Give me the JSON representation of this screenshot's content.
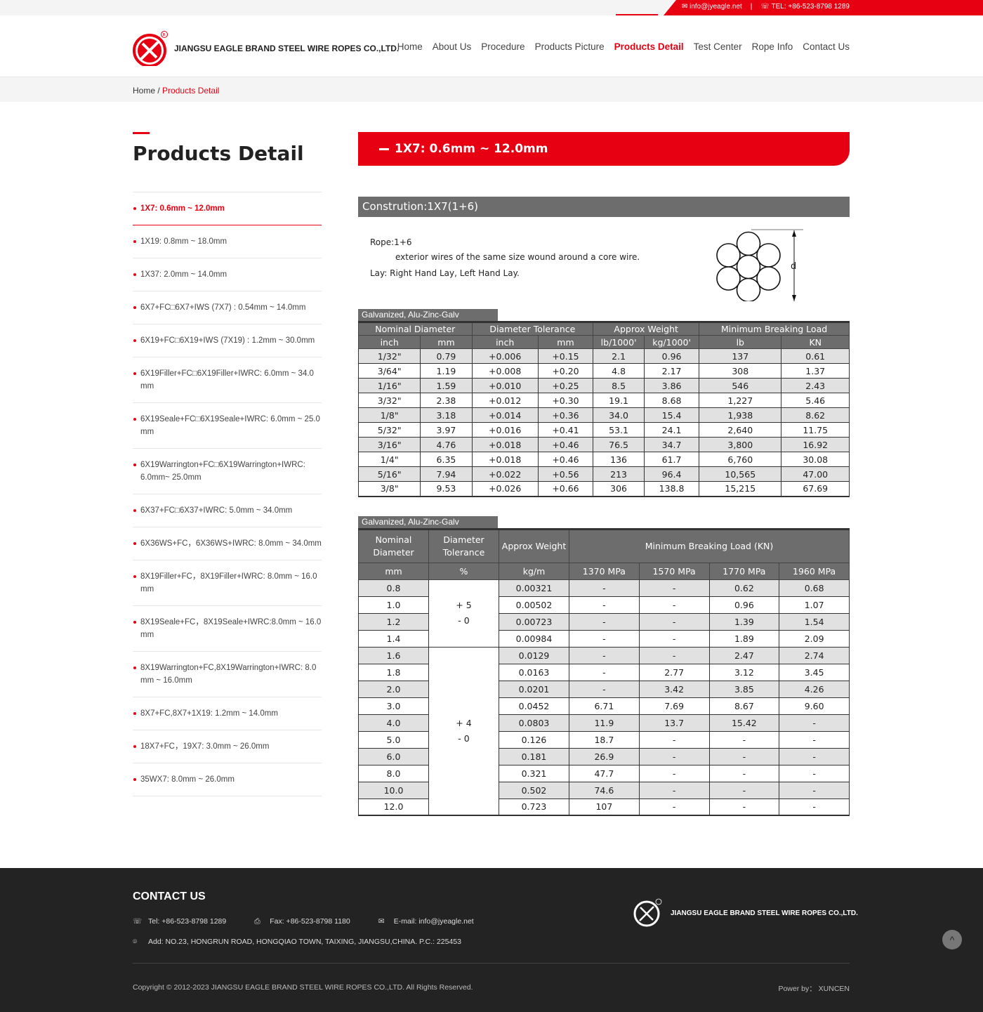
{
  "topbar": {
    "email": "info@jyeagle.net",
    "divider": "|",
    "tel": "TEL: +86-523-8798 1289"
  },
  "header": {
    "brand": "JIANGSU EAGLE BRAND STEEL WIRE ROPES CO.,LTD.",
    "nav": [
      "Home",
      "About Us",
      "Procedure",
      "Products Picture",
      "Products Detail",
      "Test Center",
      "Rope Info",
      "Contact Us"
    ],
    "active_nav": 4
  },
  "breadcrumb": {
    "home": "Home",
    "sep": " / ",
    "current": "Products Detail"
  },
  "sidebar": {
    "title": "Products Detail",
    "items": [
      "1X7: 0.6mm ~ 12.0mm",
      "1X19: 0.8mm ~ 18.0mm",
      "1X37: 2.0mm ~ 14.0mm",
      "6X7+FC□6X7+IWS (7X7) : 0.54mm ~ 14.0mm",
      "6X19+FC□6X19+IWS (7X19) : 1.2mm ~ 30.0mm",
      "6X19Filler+FC□6X19Filler+IWRC: 6.0mm ~ 34.0 mm",
      "6X19Seale+FC□6X19Seale+IWRC: 6.0mm ~ 25.0 mm",
      "6X19Warrington+FC□6X19Warrington+IWRC: 6.0mm~ 25.0mm",
      "6X37+FC□6X37+IWRC: 5.0mm ~ 34.0mm",
      "6X36WS+FC，6X36WS+IWRC: 8.0mm ~ 34.0mm",
      "8X19Filler+FC，8X19Filler+IWRC: 8.0mm ~ 16.0 mm",
      "8X19Seale+FC，8X19Seale+IWRC:8.0mm ~ 16.0 mm",
      "8X19Warrington+FC,8X19Warrington+IWRC: 8.0 mm ~ 16.0mm",
      "8X7+FC,8X7+1X19: 1.2mm ~ 14.0mm",
      "18X7+FC，19X7: 3.0mm ~ 26.0mm",
      "35WX7: 8.0mm ~ 26.0mm"
    ],
    "active": 0
  },
  "main": {
    "title": "1X7: 0.6mm ~ 12.0mm",
    "construction": "Constrution:1X7(1+6)",
    "rope": "Rope:1+6",
    "rope_desc": "exterior wires of the same size wound around a core wire.",
    "lay": "Lay: Right Hand Lay, Left Hand Lay.",
    "diagram_label": "d"
  },
  "table1": {
    "tag": "Galvanized, Alu-Zinc-Galv",
    "groups": [
      "Nominal  Diameter",
      "Diameter  Tolerance",
      "Approx  Weight",
      "Minimum  Breaking  Load"
    ],
    "units": [
      "inch",
      "mm",
      "inch",
      "mm",
      "lb/1000'",
      "kg/1000'",
      "lb",
      "KN"
    ],
    "rows": [
      [
        "1/32\"",
        "0.79",
        "+0.006",
        "+0.15",
        "2.1",
        "0.96",
        "137",
        "0.61"
      ],
      [
        "3/64\"",
        "1.19",
        "+0.008",
        "+0.20",
        "4.8",
        "2.17",
        "308",
        "1.37"
      ],
      [
        "1/16\"",
        "1.59",
        "+0.010",
        "+0.25",
        "8.5",
        "3.86",
        "546",
        "2.43"
      ],
      [
        "3/32\"",
        "2.38",
        "+0.012",
        "+0.30",
        "19.1",
        "8.68",
        "1,227",
        "5.46"
      ],
      [
        "1/8\"",
        "3.18",
        "+0.014",
        "+0.36",
        "34.0",
        "15.4",
        "1,938",
        "8.62"
      ],
      [
        "5/32\"",
        "3.97",
        "+0.016",
        "+0.41",
        "53.1",
        "24.1",
        "2,640",
        "11.75"
      ],
      [
        "3/16\"",
        "4.76",
        "+0.018",
        "+0.46",
        "76.5",
        "34.7",
        "3,800",
        "16.92"
      ],
      [
        "1/4\"",
        "6.35",
        "+0.018",
        "+0.46",
        "136",
        "61.7",
        "6,760",
        "30.08"
      ],
      [
        "5/16\"",
        "7.94",
        "+0.022",
        "+0.56",
        "213",
        "96.4",
        "10,565",
        "47.00"
      ],
      [
        "3/8\"",
        "9.53",
        "+0.026",
        "+0.66",
        "306",
        "138.8",
        "15,215",
        "67.69"
      ]
    ]
  },
  "table2": {
    "tag": "Galvanized, Alu-Zinc-Galv",
    "head": [
      "Nominal Diameter",
      "Diameter Tolerance",
      "Approx Weight",
      "Minimum  Breaking  Load  (KN)"
    ],
    "units": [
      "mm",
      "%",
      "kg/m",
      "1370  MPa",
      "1570  MPa",
      "1770  MPa",
      "1960  MPa"
    ],
    "tolerance_groups": [
      {
        "rows": 4,
        "plus": "+ 5",
        "minus": "- 0"
      },
      {
        "rows": 10,
        "plus": "+ 4",
        "minus": "-  0"
      }
    ],
    "rows": [
      [
        "0.8",
        "0.00321",
        "-",
        "-",
        "0.62",
        "0.68"
      ],
      [
        "1.0",
        "0.00502",
        "-",
        "-",
        "0.96",
        "1.07"
      ],
      [
        "1.2",
        "0.00723",
        "-",
        "-",
        "1.39",
        "1.54"
      ],
      [
        "1.4",
        "0.00984",
        "-",
        "-",
        "1.89",
        "2.09"
      ],
      [
        "1.6",
        "0.0129",
        "-",
        "-",
        "2.47",
        "2.74"
      ],
      [
        "1.8",
        "0.0163",
        "-",
        "2.77",
        "3.12",
        "3.45"
      ],
      [
        "2.0",
        "0.0201",
        "-",
        "3.42",
        "3.85",
        "4.26"
      ],
      [
        "3.0",
        "0.0452",
        "6.71",
        "7.69",
        "8.67",
        "9.60"
      ],
      [
        "4.0",
        "0.0803",
        "11.9",
        "13.7",
        "15.42",
        "-"
      ],
      [
        "5.0",
        "0.126",
        "18.7",
        "-",
        "-",
        "-"
      ],
      [
        "6.0",
        "0.181",
        "26.9",
        "-",
        "-",
        "-"
      ],
      [
        "8.0",
        "0.321",
        "47.7",
        "-",
        "-",
        "-"
      ],
      [
        "10.0",
        "0.502",
        "74.6",
        "-",
        "-",
        "-"
      ],
      [
        "12.0",
        "0.723",
        "107",
        "-",
        "-",
        "-"
      ]
    ]
  },
  "footer": {
    "title": "CONTACT US",
    "tel": "Tel: +86-523-8798 1289",
    "fax": "Fax: +86-523-8798 1180",
    "email": "E-mail: info@jyeagle.net",
    "address": "Add: NO.23, HONGRUN ROAD, HONGQIAO TOWN, TAIXING, JIANGSU,CHINA.  P.C.: 225453",
    "brand": "JIANGSU EAGLE BRAND STEEL WIRE ROPES CO.,LTD.",
    "copyright": "Copyright © 2012-2023 JIANGSU EAGLE BRAND STEEL WIRE ROPES CO.,LTD. All Rights Reserved.",
    "power": "Power by： XUNCEN"
  },
  "colors": {
    "accent": "#e60012",
    "table_header": "#6d6d6d",
    "footer_bg": "#232323"
  }
}
